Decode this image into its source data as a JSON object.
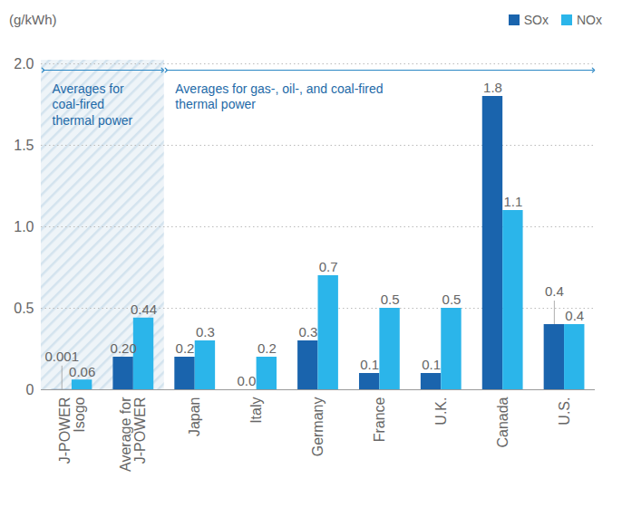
{
  "chart_data": {
    "type": "bar",
    "ylabel": "(g/kWh)",
    "categories": [
      "J-POWER\nIsogo",
      "Average for\nJ-POWER",
      "Japan",
      "Italy",
      "Germany",
      "France",
      "U.K.",
      "Canada",
      "U.S."
    ],
    "series": [
      {
        "name": "SOx",
        "color": "#1a64ad",
        "values": [
          0.001,
          0.2,
          0.2,
          0.0,
          0.3,
          0.1,
          0.1,
          1.8,
          0.4
        ],
        "value_labels": [
          "0.001",
          "0.20",
          "0.2",
          "0.0",
          "0.3",
          "0.1",
          "0.1",
          "1.8",
          "0.4"
        ]
      },
      {
        "name": "NOx",
        "color": "#2bb5ea",
        "values": [
          0.06,
          0.44,
          0.3,
          0.2,
          0.7,
          0.5,
          0.5,
          1.1,
          0.4
        ],
        "value_labels": [
          "0.06",
          "0.44",
          "0.3",
          "0.2",
          "0.7",
          "0.5",
          "0.5",
          "1.1",
          "0.4"
        ]
      }
    ],
    "ylim": [
      0,
      2
    ],
    "yticks": [
      0,
      0.5,
      {
        "value": 1,
        "label": "1.0"
      },
      1.5,
      {
        "value": 2,
        "label": "2.0"
      }
    ],
    "grid": true,
    "legend": "top-right",
    "data_labels": true,
    "annotations": [
      {
        "text": "Averages for\ncoal-fired\nthermal power",
        "from": "J-POWER\nIsogo",
        "to": "Average for\nJ-POWER"
      },
      {
        "text": "Averages for gas-, oil-, and coal-fired\nthermal power",
        "from": "Japan",
        "to": "U.S."
      }
    ]
  }
}
